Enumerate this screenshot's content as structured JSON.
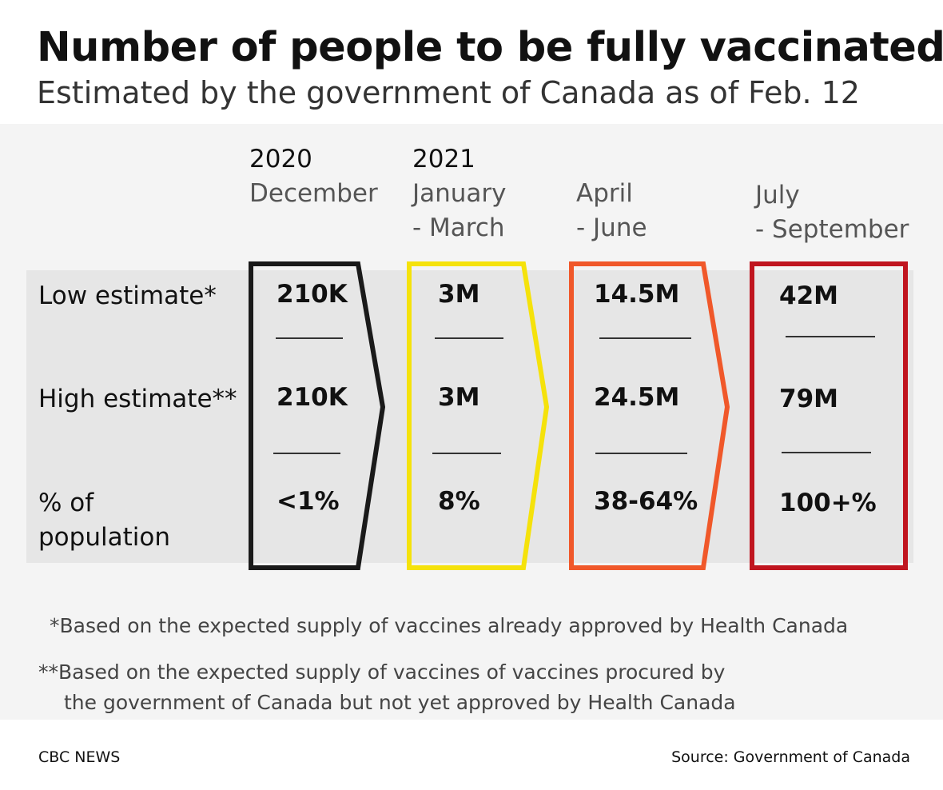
{
  "header": {
    "title": "Number of people to be fully vaccinated",
    "subtitle": "Estimated by the government of Canada as of Feb. 12"
  },
  "rows": {
    "low": "Low estimate*",
    "high": "High estimate**",
    "pct_line1": "% of",
    "pct_line2": "population"
  },
  "periods": [
    {
      "year": "2020",
      "range": "December",
      "low": "210K",
      "high": "210K",
      "pct": "<1%",
      "color": "#1a1a1a"
    },
    {
      "year": "2021",
      "range": "January\n- March",
      "low": "3M",
      "high": "3M",
      "pct": "8%",
      "color": "#f5e20b"
    },
    {
      "year": "",
      "range": "April\n- June",
      "low": "14.5M",
      "high": "24.5M",
      "pct": "38-64%",
      "color": "#f0582a"
    },
    {
      "year": "",
      "range": "July\n- September",
      "low": "42M",
      "high": "79M",
      "pct": "100+%",
      "color": "#c0151f"
    }
  ],
  "notes": {
    "note1": "*Based on the expected supply of vaccines already approved by Health Canada",
    "note2_line1": "**Based on the expected supply of vaccines of vaccines procured by",
    "note2_line2": "the government of Canada but not yet approved by Health Canada"
  },
  "footer": {
    "brand": "CBC NEWS",
    "source": "Source: Government of Canada"
  }
}
